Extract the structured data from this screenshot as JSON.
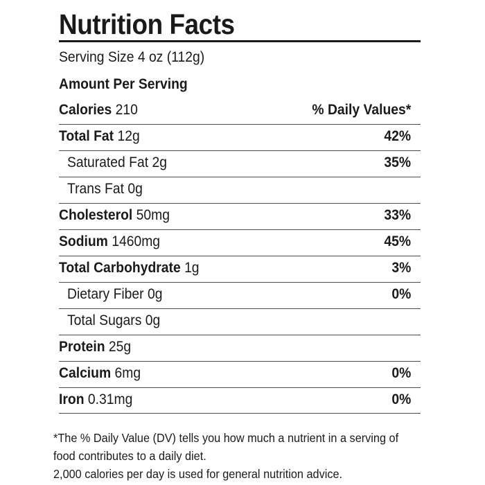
{
  "label": {
    "title": "Nutrition Facts",
    "serving_size": "Serving Size 4 oz (112g)",
    "amount_per_serving": "Amount Per Serving",
    "calories_label": "Calories",
    "calories_value": "210",
    "daily_values_header": "% Daily Values*",
    "rows": [
      {
        "name": "Total Fat",
        "amount": "12g",
        "dv": "42%"
      },
      {
        "name": "Saturated Fat",
        "amount": "2g",
        "dv": "35%"
      },
      {
        "name": "Trans Fat",
        "amount": "0g",
        "dv": ""
      },
      {
        "name": "Cholesterol",
        "amount": "50mg",
        "dv": "33%"
      },
      {
        "name": "Sodium",
        "amount": "1460mg",
        "dv": "45%"
      },
      {
        "name": "Total Carbohydrate",
        "amount": "1g",
        "dv": "3%"
      },
      {
        "name": "Dietary Fiber",
        "amount": "0g",
        "dv": "0%"
      },
      {
        "name": "Total Sugars",
        "amount": "0g",
        "dv": ""
      },
      {
        "name": "Protein",
        "amount": "25g",
        "dv": ""
      },
      {
        "name": "Calcium",
        "amount": "6mg",
        "dv": "0%"
      },
      {
        "name": "Iron",
        "amount": "0.31mg",
        "dv": "0%"
      }
    ],
    "footnote": [
      "*The % Daily Value (DV) tells you how much a nutrient in a serving of",
      "food contributes to a daily diet.",
      "2,000 calories per day is used for general nutrition advice."
    ]
  }
}
